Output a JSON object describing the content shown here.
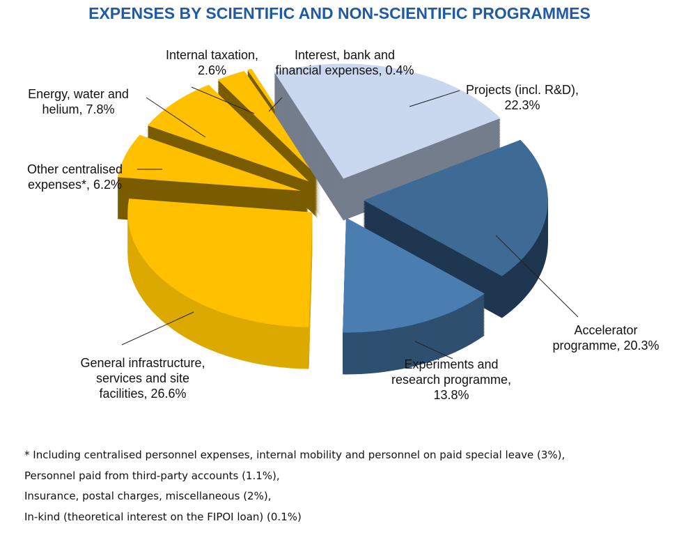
{
  "chart_data": {
    "type": "pie",
    "style": "3d-exploded",
    "title": "EXPENSES BY SCIENTIFIC AND NON-SCIENTIFIC PROGRAMMES",
    "slices": [
      {
        "label": "Projects (incl. R&D), 22.3%",
        "value": 22.3,
        "color": "#c9d8ee",
        "side": "#747d8c"
      },
      {
        "label": "Accelerator programme, 20.3%",
        "value": 20.3,
        "color": "#3e6a96",
        "side": "#1f3650"
      },
      {
        "label": "Experiments and research programme, 13.8%",
        "value": 13.8,
        "color": "#4a7eb1",
        "side": "#2e4f6f"
      },
      {
        "label": "General infrastructure, services and site facilities, 26.6%",
        "value": 26.6,
        "color": "#ffc000",
        "side": "#dca900"
      },
      {
        "label": "Other centralised expenses*, 6.2%",
        "value": 6.2,
        "color": "#ffc000",
        "side": "#7a5c00"
      },
      {
        "label": "Energy, water and helium, 7.8%",
        "value": 7.8,
        "color": "#ffc000",
        "side": "#7a5c00"
      },
      {
        "label": "Internal taxation, 2.6%",
        "value": 2.6,
        "color": "#ffc000",
        "side": "#7a5c00"
      },
      {
        "label": "Interest, bank and financial expenses, 0.4%",
        "value": 0.4,
        "color": "#ffc000",
        "side": "#7a5c00"
      }
    ],
    "footnotes": [
      "* Including centralised personnel expenses, internal mobility and personnel on paid special leave (3%),",
      "Personnel paid from third-party accounts (1.1%),",
      "Insurance, postal charges, miscellaneous (2%),",
      "In-kind (theoretical interest on the FIPOI loan) (0.1%)"
    ]
  }
}
